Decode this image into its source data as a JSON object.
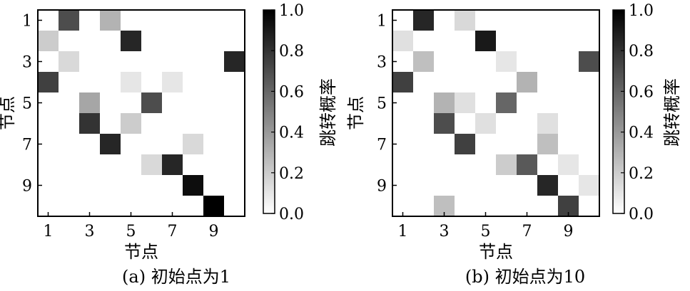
{
  "chart_data": [
    {
      "type": "heatmap",
      "caption": "(a) 初始点为1",
      "xlabel": "节点",
      "ylabel": "节点",
      "x_ticks": [
        "1",
        "3",
        "5",
        "7",
        "9"
      ],
      "y_ticks": [
        "1",
        "3",
        "5",
        "7",
        "9"
      ],
      "colorbar": {
        "label": "跳转概率",
        "ticks": [
          "0.0",
          "0.2",
          "0.4",
          "0.6",
          "0.8",
          "1.0"
        ],
        "range": [
          0,
          1
        ]
      },
      "size": 10,
      "values": [
        [
          0,
          0.7,
          0,
          0.3,
          0,
          0,
          0,
          0,
          0,
          0
        ],
        [
          0.2,
          0,
          0,
          0,
          0.85,
          0,
          0,
          0,
          0,
          0
        ],
        [
          0,
          0.15,
          0,
          0,
          0,
          0,
          0,
          0,
          0,
          0.85
        ],
        [
          0.75,
          0,
          0,
          0,
          0.1,
          0,
          0.1,
          0,
          0,
          0
        ],
        [
          0,
          0,
          0.35,
          0,
          0,
          0.7,
          0,
          0,
          0,
          0
        ],
        [
          0,
          0,
          0.8,
          0,
          0.2,
          0,
          0,
          0,
          0,
          0
        ],
        [
          0,
          0,
          0,
          0.85,
          0,
          0,
          0,
          0.15,
          0,
          0
        ],
        [
          0,
          0,
          0,
          0,
          0,
          0.15,
          0.85,
          0,
          0,
          0
        ],
        [
          0,
          0,
          0,
          0,
          0,
          0,
          0,
          0.95,
          0,
          0
        ],
        [
          0,
          0,
          0,
          0,
          0,
          0,
          0,
          0,
          1.0,
          0
        ]
      ]
    },
    {
      "type": "heatmap",
      "caption": "(b) 初始点为10",
      "xlabel": "节点",
      "ylabel": "节点",
      "x_ticks": [
        "1",
        "3",
        "5",
        "7",
        "9"
      ],
      "y_ticks": [
        "1",
        "3",
        "5",
        "7",
        "9"
      ],
      "colorbar": {
        "label": "跳转概率",
        "ticks": [
          "0.0",
          "0.2",
          "0.4",
          "0.6",
          "0.8",
          "1.0"
        ],
        "range": [
          0,
          1
        ]
      },
      "size": 10,
      "values": [
        [
          0,
          0.85,
          0,
          0.15,
          0,
          0,
          0,
          0,
          0,
          0
        ],
        [
          0.12,
          0,
          0,
          0,
          0.9,
          0,
          0,
          0,
          0,
          0
        ],
        [
          0,
          0.25,
          0,
          0,
          0,
          0.1,
          0,
          0,
          0,
          0.7
        ],
        [
          0.75,
          0,
          0,
          0,
          0,
          0,
          0.3,
          0,
          0,
          0
        ],
        [
          0,
          0,
          0.3,
          0.12,
          0,
          0.6,
          0,
          0,
          0,
          0
        ],
        [
          0,
          0,
          0.7,
          0,
          0.12,
          0,
          0,
          0.12,
          0,
          0
        ],
        [
          0,
          0,
          0,
          0.75,
          0,
          0,
          0,
          0.25,
          0,
          0
        ],
        [
          0,
          0,
          0,
          0,
          0,
          0.2,
          0.65,
          0,
          0.1,
          0
        ],
        [
          0,
          0,
          0,
          0,
          0,
          0,
          0,
          0.85,
          0,
          0.1
        ],
        [
          0,
          0,
          0.25,
          0,
          0,
          0,
          0,
          0,
          0.75,
          0
        ]
      ]
    }
  ]
}
